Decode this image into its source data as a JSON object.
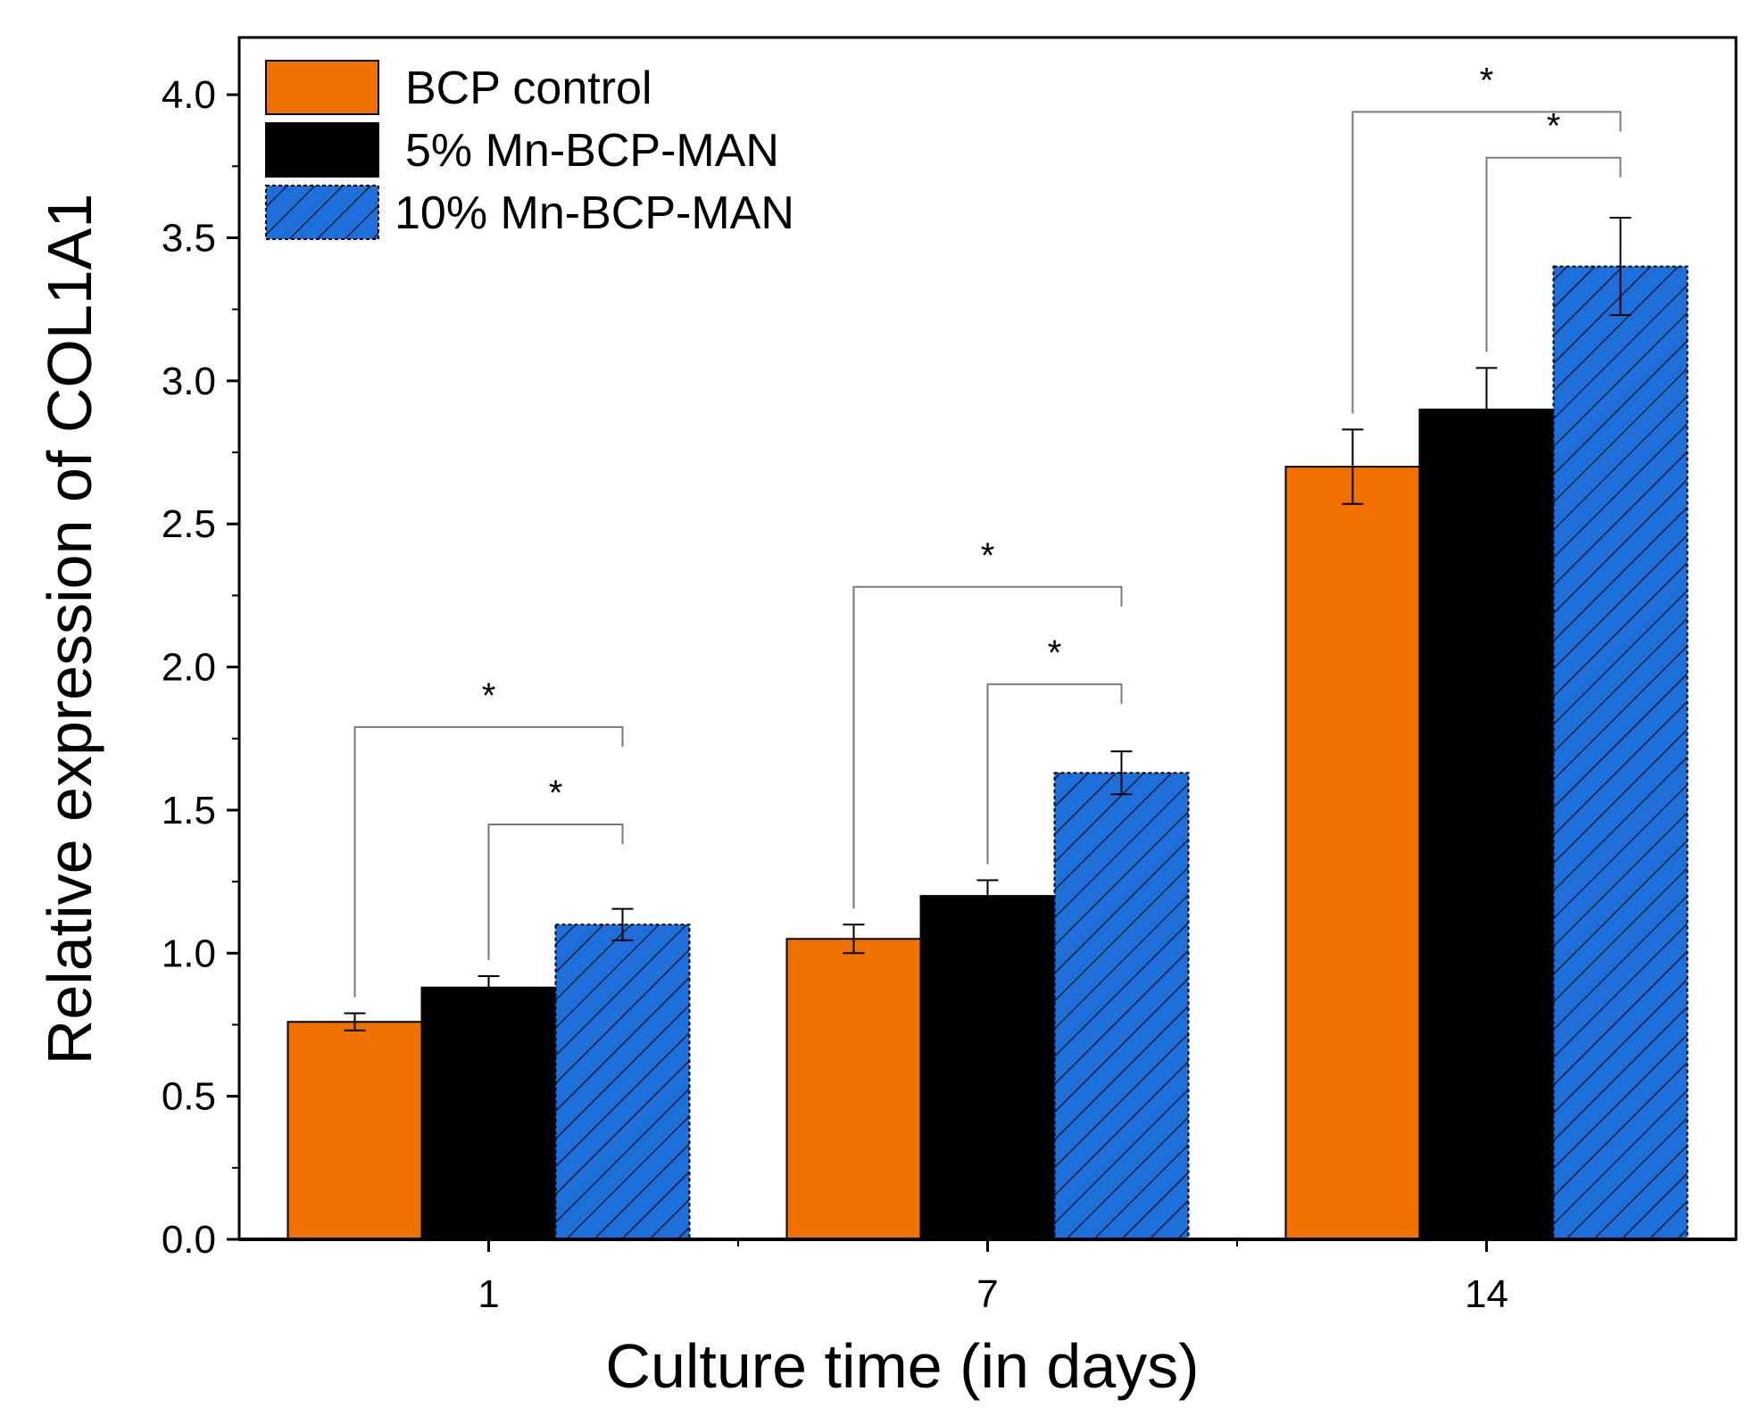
{
  "chart_data": {
    "type": "bar",
    "title": "",
    "xlabel": "Culture time (in days)",
    "ylabel": "Relative expression of COL1A1",
    "categories": [
      "1",
      "7",
      "14"
    ],
    "ylim": [
      0,
      4.2
    ],
    "yticks": [
      "0.0",
      "0.5",
      "1.0",
      "1.5",
      "2.0",
      "2.5",
      "3.0",
      "3.5",
      "4.0"
    ],
    "legend_position": "top-left",
    "series": [
      {
        "name": "BCP control",
        "color": "#f07000",
        "pattern": "solid",
        "values": [
          0.76,
          1.05,
          2.7
        ],
        "errors": [
          0.03,
          0.05,
          0.13
        ]
      },
      {
        "name": "5% Mn-BCP-MAN",
        "color": "#000000",
        "pattern": "solid",
        "values": [
          0.88,
          1.2,
          2.9
        ],
        "errors": [
          0.04,
          0.055,
          0.145
        ]
      },
      {
        "name": "10% Mn-BCP-MAN",
        "color": "#1e6fd9",
        "pattern": "hatched",
        "values": [
          1.1,
          1.63,
          3.4
        ],
        "errors": [
          0.055,
          0.075,
          0.17
        ]
      }
    ],
    "significance": [
      {
        "category": 0,
        "from_series": 0,
        "to_series": 2,
        "label": "*",
        "line_y": 1.79
      },
      {
        "category": 0,
        "from_series": 1,
        "to_series": 2,
        "label": "*",
        "line_y": 1.45
      },
      {
        "category": 1,
        "from_series": 0,
        "to_series": 2,
        "label": "*",
        "line_y": 2.28
      },
      {
        "category": 1,
        "from_series": 1,
        "to_series": 2,
        "label": "*",
        "line_y": 1.94
      },
      {
        "category": 2,
        "from_series": 0,
        "to_series": 2,
        "label": "*",
        "line_y": 3.94
      },
      {
        "category": 2,
        "from_series": 1,
        "to_series": 2,
        "label": "*",
        "line_y": 3.78
      }
    ]
  }
}
